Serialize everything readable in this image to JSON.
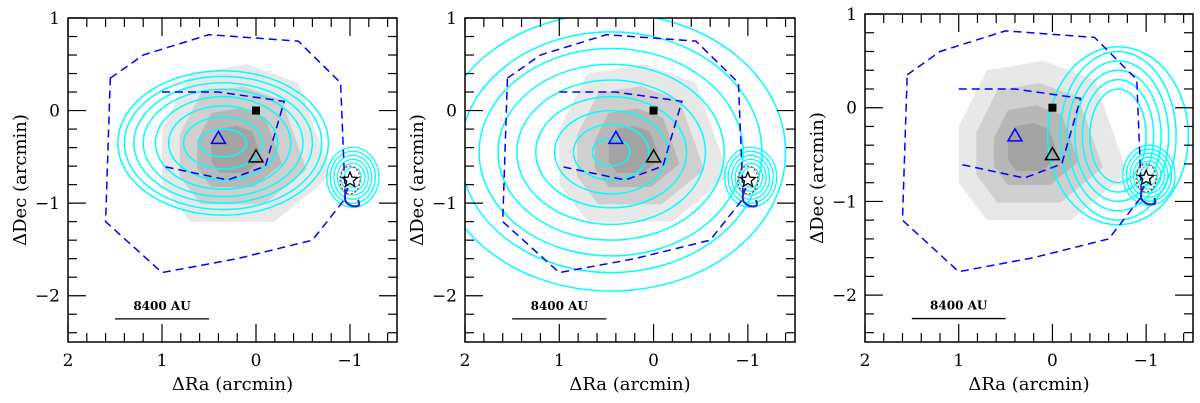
{
  "colors": {
    "contour": "#00ffff",
    "dashed": "#0000ff",
    "grey": "#808080",
    "red": "#ff0000",
    "blue": "#1e1ee6"
  },
  "chart_data": [
    {
      "type": "contour",
      "xlabel": "ΔRa (arcmin)",
      "ylabel": "ΔDec (arcmin)",
      "xlim": [
        2,
        -1.5
      ],
      "ylim": [
        -2.5,
        1
      ],
      "xticks": [
        "2",
        "1",
        "0",
        "−1"
      ],
      "xtickvals": [
        2,
        1,
        0,
        -1
      ],
      "yticks": [
        "1",
        "0",
        "−1",
        "−2"
      ],
      "ytickvals": [
        1,
        0,
        -1,
        -2
      ],
      "scalebar": {
        "label": "8400 AU",
        "x": [
          1.5,
          0.5
        ],
        "y": -2.25
      },
      "contour_center": [
        0.35,
        -0.35
      ],
      "contour_radii": [
        [
          0.25,
          0.15
        ],
        [
          0.42,
          0.28
        ],
        [
          0.58,
          0.4
        ],
        [
          0.72,
          0.5
        ],
        [
          0.85,
          0.58
        ],
        [
          0.95,
          0.65
        ],
        [
          1.05,
          0.72
        ],
        [
          1.12,
          0.78
        ]
      ],
      "grey": [
        [
          1.0,
          -0.2
        ],
        [
          0.7,
          0.4
        ],
        [
          0.1,
          0.5
        ],
        [
          -0.45,
          0.3
        ],
        [
          -0.8,
          -0.7
        ],
        [
          -0.2,
          -1.2
        ],
        [
          0.7,
          -1.2
        ],
        [
          1.0,
          -0.8
        ]
      ],
      "dashed_outer": [
        [
          1.55,
          0.35
        ],
        [
          1.2,
          0.6
        ],
        [
          0.5,
          0.82
        ],
        [
          -0.45,
          0.75
        ],
        [
          -0.9,
          0.3
        ],
        [
          -0.95,
          -0.95
        ],
        [
          -0.6,
          -1.4
        ],
        [
          0.2,
          -1.6
        ],
        [
          1.0,
          -1.75
        ],
        [
          1.6,
          -1.2
        ]
      ],
      "dashed_inner": [
        [
          1.0,
          0.2
        ],
        [
          0.4,
          0.2
        ],
        [
          -0.3,
          0.1
        ],
        [
          -0.1,
          -0.6
        ],
        [
          0.3,
          -0.75
        ],
        [
          1.0,
          -0.6
        ]
      ],
      "markers": {
        "square": [
          0,
          0
        ],
        "blue_triangle": [
          0.4,
          -0.3
        ],
        "black_triangle": [
          0,
          -0.5
        ],
        "star": [
          -1,
          -0.75
        ]
      }
    },
    {
      "type": "contour",
      "xlabel": "ΔRa (arcmin)",
      "ylabel": "ΔDec (arcmin)",
      "xlim": [
        2,
        -1.5
      ],
      "ylim": [
        -2.5,
        1
      ],
      "xticks": [
        "2",
        "1",
        "0",
        "−1"
      ],
      "xtickvals": [
        2,
        1,
        0,
        -1
      ],
      "yticks": [
        "1",
        "0",
        "−1",
        "−2"
      ],
      "ytickvals": [
        1,
        0,
        -1,
        -2
      ],
      "scalebar": {
        "label": "8400 AU",
        "x": [
          1.5,
          0.5
        ],
        "y": -2.25
      },
      "contour_center": [
        0.45,
        -0.45
      ],
      "contour_radii": [
        [
          0.2,
          0.15
        ],
        [
          0.4,
          0.3
        ],
        [
          0.6,
          0.45
        ],
        [
          0.8,
          0.6
        ],
        [
          1.0,
          0.78
        ],
        [
          1.2,
          0.95
        ],
        [
          1.4,
          1.12
        ],
        [
          1.6,
          1.3
        ],
        [
          1.85,
          1.5
        ]
      ],
      "grey": [
        [
          1.0,
          -0.2
        ],
        [
          0.7,
          0.4
        ],
        [
          0.1,
          0.5
        ],
        [
          -0.45,
          0.3
        ],
        [
          -0.8,
          -0.7
        ],
        [
          -0.2,
          -1.2
        ],
        [
          0.7,
          -1.2
        ],
        [
          1.0,
          -0.8
        ]
      ],
      "dashed_outer": [
        [
          1.55,
          0.35
        ],
        [
          1.2,
          0.6
        ],
        [
          0.5,
          0.82
        ],
        [
          -0.45,
          0.75
        ],
        [
          -0.9,
          0.3
        ],
        [
          -0.95,
          -0.95
        ],
        [
          -0.6,
          -1.4
        ],
        [
          0.2,
          -1.6
        ],
        [
          1.0,
          -1.75
        ],
        [
          1.6,
          -1.2
        ]
      ],
      "dashed_inner": [
        [
          1.0,
          0.2
        ],
        [
          0.4,
          0.2
        ],
        [
          -0.3,
          0.1
        ],
        [
          -0.1,
          -0.6
        ],
        [
          0.3,
          -0.75
        ],
        [
          1.0,
          -0.6
        ]
      ],
      "markers": {
        "square": [
          0,
          0
        ],
        "blue_triangle": [
          0.4,
          -0.3
        ],
        "black_triangle": [
          0,
          -0.5
        ],
        "star": [
          -1,
          -0.75
        ]
      }
    },
    {
      "type": "contour",
      "xlabel": "ΔRa (arcmin)",
      "ylabel": "ΔDec (arcmin)",
      "xlim": [
        2,
        -1.5
      ],
      "ylim": [
        -2.5,
        1
      ],
      "xticks": [
        "2",
        "1",
        "0",
        "−1"
      ],
      "xtickvals": [
        2,
        1,
        0,
        -1
      ],
      "yticks": [
        "1",
        "0",
        "−1",
        "−2"
      ],
      "ytickvals": [
        1,
        0,
        -1,
        -2
      ],
      "scalebar": {
        "label": "8400 AU",
        "x": [
          1.5,
          0.5
        ],
        "y": -2.25
      },
      "contour_center": [
        -0.7,
        -0.3
      ],
      "contour_radii": [
        [
          0.3,
          0.5
        ],
        [
          0.38,
          0.6
        ],
        [
          0.46,
          0.7
        ],
        [
          0.54,
          0.8
        ],
        [
          0.62,
          0.9
        ],
        [
          0.75,
          0.95
        ]
      ],
      "grey": [
        [
          1.0,
          -0.2
        ],
        [
          0.7,
          0.4
        ],
        [
          0.1,
          0.5
        ],
        [
          -0.45,
          0.3
        ],
        [
          -0.8,
          -0.7
        ],
        [
          -0.2,
          -1.2
        ],
        [
          0.7,
          -1.2
        ],
        [
          1.0,
          -0.8
        ]
      ],
      "dashed_outer": [
        [
          1.55,
          0.35
        ],
        [
          1.2,
          0.6
        ],
        [
          0.5,
          0.82
        ],
        [
          -0.45,
          0.75
        ],
        [
          -0.9,
          0.3
        ],
        [
          -0.95,
          -0.95
        ],
        [
          -0.6,
          -1.4
        ],
        [
          0.2,
          -1.6
        ],
        [
          1.0,
          -1.75
        ],
        [
          1.6,
          -1.2
        ]
      ],
      "dashed_inner": [
        [
          1.0,
          0.2
        ],
        [
          0.4,
          0.2
        ],
        [
          -0.3,
          0.1
        ],
        [
          -0.1,
          -0.6
        ],
        [
          0.3,
          -0.75
        ],
        [
          1.0,
          -0.6
        ]
      ],
      "markers": {
        "square": [
          0,
          0
        ],
        "blue_triangle": [
          0.4,
          -0.3
        ],
        "black_triangle": [
          0,
          -0.5
        ],
        "star": [
          -1,
          -0.75
        ]
      }
    }
  ]
}
